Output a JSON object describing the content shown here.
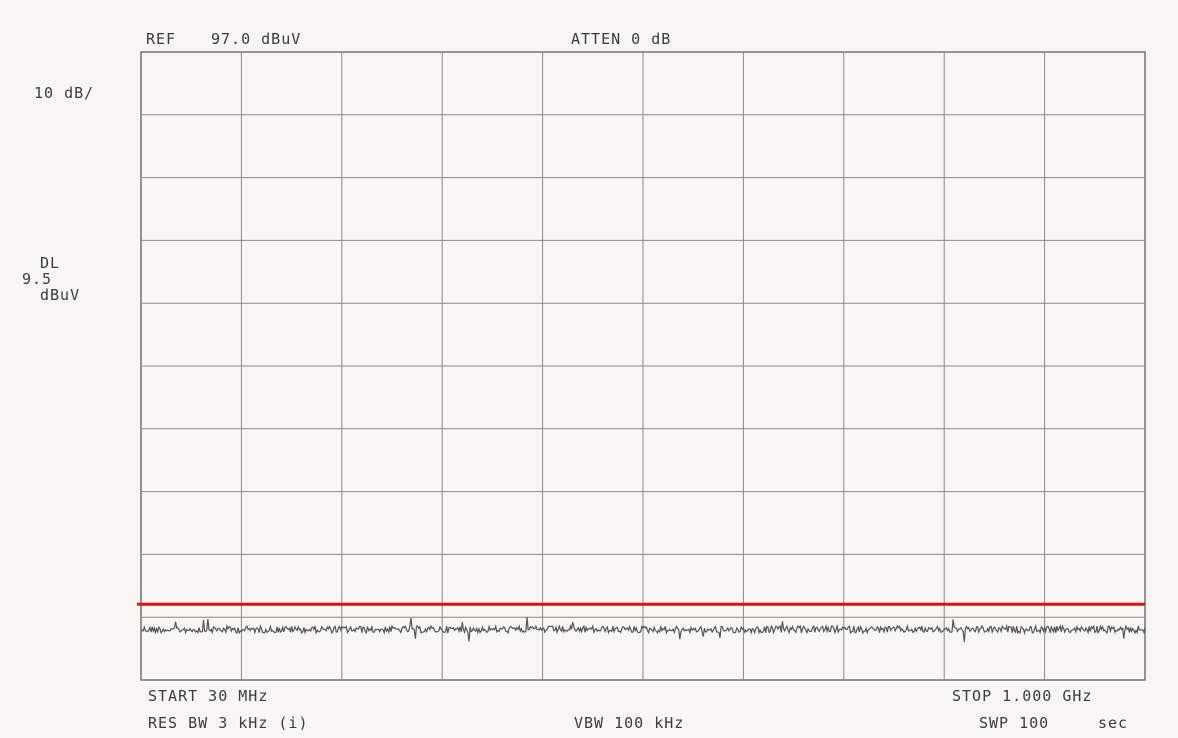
{
  "header": {
    "ref_label": "REF",
    "ref_value": "97.0 dBuV",
    "atten_label": "ATTEN 0 dB"
  },
  "left_panel": {
    "scale": "10 dB/",
    "dl_label": "DL",
    "dl_value": "9.5",
    "dl_unit": "dBuV"
  },
  "footer": {
    "start": "START 30 MHz",
    "stop": "STOP 1.000 GHz",
    "res_bw": "RES BW 3 kHz (i)",
    "vbw": "VBW 100 kHz",
    "swp_label": "SWP 100",
    "swp_unit": "sec"
  },
  "chart_data": {
    "type": "line",
    "x_unit": "MHz",
    "y_unit": "dBuV",
    "xlim": [
      30,
      1000
    ],
    "ylim": [
      -2.5,
      97.0
    ],
    "ref_level": 97.0,
    "scale_db_per_div": 10,
    "display_line": 9.5,
    "display_line_color": "#dd1111",
    "grid": true,
    "series": [
      {
        "color": "#555555",
        "x": [
          30,
          127,
          224,
          321,
          418,
          515,
          612,
          709,
          806,
          903,
          1000
        ],
        "values": [
          5.5,
          5.5,
          5.5,
          5.5,
          5.5,
          5.5,
          5.5,
          5.5,
          5.5,
          5.5,
          5.5
        ]
      }
    ]
  }
}
